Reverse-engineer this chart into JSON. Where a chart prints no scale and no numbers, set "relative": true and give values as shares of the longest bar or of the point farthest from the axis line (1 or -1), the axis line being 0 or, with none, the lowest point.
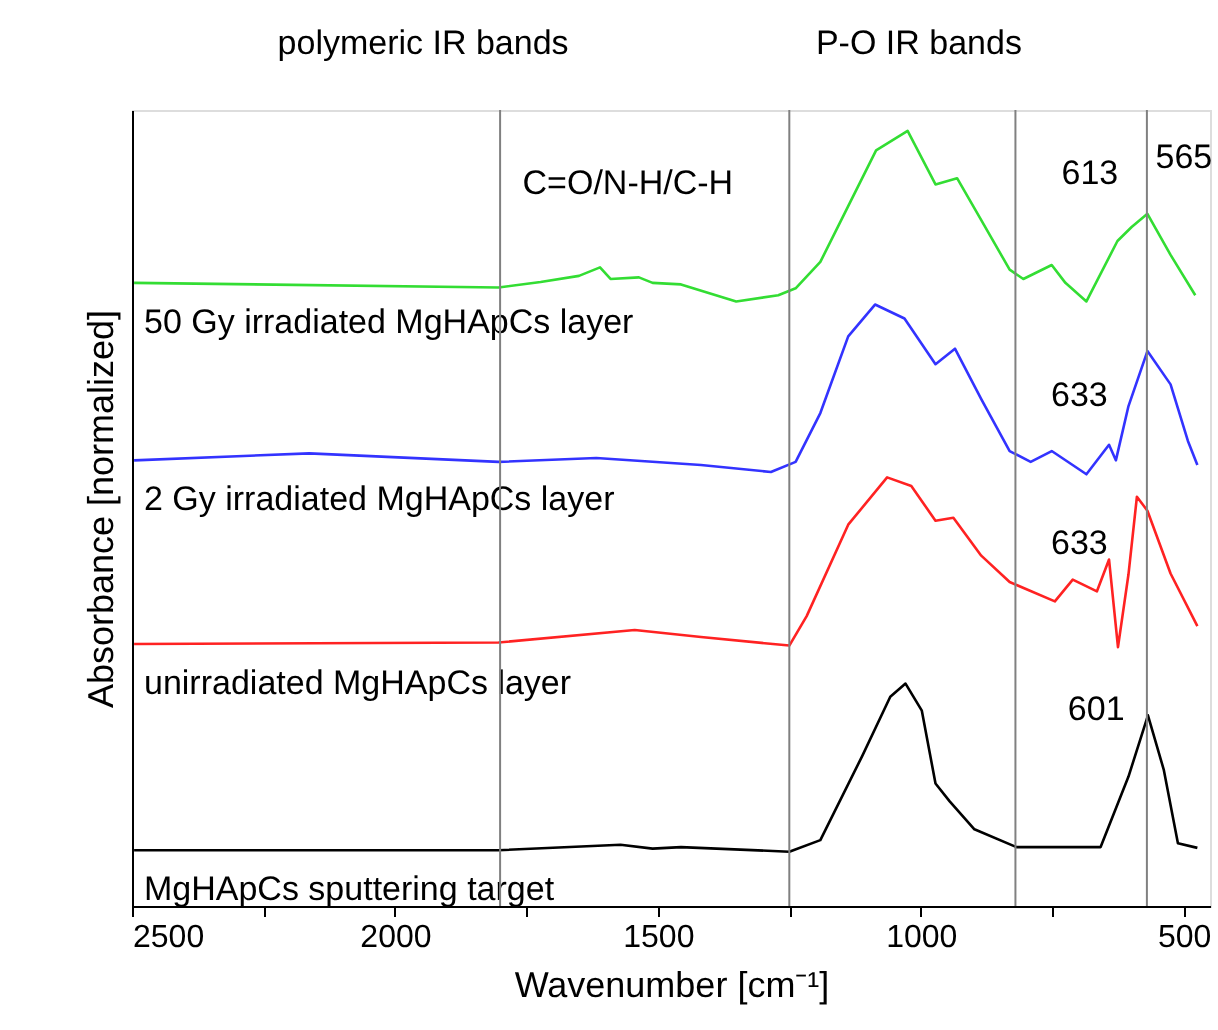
{
  "chart_data": {
    "type": "line",
    "relative": true,
    "xlabel": "Wavenumber [cm⁻¹]",
    "ylabel": "Absorbance [normalized]",
    "xlim": [
      2500,
      450
    ],
    "xticks": [
      2500,
      {
        "value": 2250,
        "label": null
      },
      2000,
      {
        "value": 1750,
        "label": null
      },
      1500,
      {
        "value": 1250,
        "label": null
      },
      1000,
      {
        "value": 750,
        "label": null
      },
      500
    ],
    "grid": false,
    "legend": false,
    "line_style": "solid",
    "marker": "none",
    "series": [
      {
        "name": "50 Gy irradiated MgHApCs layer",
        "color": "#33dd33",
        "x": [
          2496,
          1803,
          1723,
          1650,
          1610,
          1590,
          1536,
          1510,
          1456,
          1351,
          1271,
          1238,
          1191,
          1138,
          1085,
          1025,
          972,
          931,
          885,
          831,
          805,
          751,
          725,
          685,
          626,
          599,
          569,
          525,
          478
        ],
        "values": [
          0.804,
          0.798,
          0.805,
          0.813,
          0.824,
          0.809,
          0.811,
          0.804,
          0.802,
          0.78,
          0.788,
          0.797,
          0.831,
          0.903,
          0.975,
          1.0,
          0.931,
          0.939,
          0.885,
          0.821,
          0.809,
          0.827,
          0.804,
          0.78,
          0.858,
          0.876,
          0.893,
          0.84,
          0.788
        ]
      },
      {
        "name": "2 Gy irradiated MgHApCs layer",
        "color": "#3333ff",
        "x": [
          2496,
          2163,
          1803,
          1617,
          1418,
          1285,
          1238,
          1191,
          1138,
          1087,
          1031,
          972,
          935,
          885,
          831,
          791,
          751,
          685,
          642,
          629,
          605,
          569,
          525,
          492,
          474
        ],
        "values": [
          0.575,
          0.584,
          0.573,
          0.578,
          0.569,
          0.56,
          0.573,
          0.636,
          0.735,
          0.776,
          0.758,
          0.699,
          0.719,
          0.654,
          0.587,
          0.573,
          0.587,
          0.557,
          0.595,
          0.575,
          0.645,
          0.716,
          0.673,
          0.6,
          0.569
        ]
      },
      {
        "name": "unirradiated MgHApCs layer",
        "color": "#ff2222",
        "x": [
          2496,
          1803,
          1544,
          1418,
          1250,
          1217,
          1138,
          1064,
          1018,
          972,
          938,
          885,
          831,
          745,
          711,
          665,
          642,
          625,
          605,
          589,
          569,
          525,
          474
        ],
        "values": [
          0.338,
          0.34,
          0.356,
          0.347,
          0.336,
          0.374,
          0.492,
          0.553,
          0.542,
          0.497,
          0.501,
          0.452,
          0.418,
          0.393,
          0.421,
          0.406,
          0.447,
          0.334,
          0.428,
          0.528,
          0.51,
          0.429,
          0.361
        ]
      },
      {
        "name": "MgHApCs sputtering target",
        "color": "#000000",
        "x": [
          2496,
          1803,
          1571,
          1510,
          1456,
          1250,
          1191,
          1111,
          1058,
          1029,
          998,
          972,
          945,
          898,
          818,
          658,
          605,
          568,
          538,
          511,
          474
        ],
        "values": [
          0.072,
          0.072,
          0.079,
          0.074,
          0.076,
          0.07,
          0.085,
          0.194,
          0.27,
          0.287,
          0.252,
          0.158,
          0.135,
          0.099,
          0.076,
          0.076,
          0.167,
          0.246,
          0.176,
          0.081,
          0.075
        ]
      }
    ],
    "ref_lines": [
      {
        "axis": "x",
        "value": 1800,
        "color": "#808080"
      },
      {
        "axis": "x",
        "value": 1250,
        "color": "#808080"
      },
      {
        "axis": "x",
        "value": 820,
        "color": "#808080"
      },
      {
        "axis": "x",
        "value": 570,
        "color": "#808080"
      }
    ],
    "annotations": [
      "polymeric IR bands",
      "P-O IR bands",
      "C=O/N-H/C-H",
      {
        "text": "613",
        "x": 613,
        "y": 0.867
      },
      {
        "text": "565",
        "x": 565,
        "y": 0.888
      },
      {
        "text": "633",
        "x": 633,
        "y": 0.581
      },
      {
        "text": "633",
        "x": 633,
        "y": 0.39
      },
      {
        "text": "601",
        "x": 601,
        "y": 0.175
      }
    ]
  }
}
